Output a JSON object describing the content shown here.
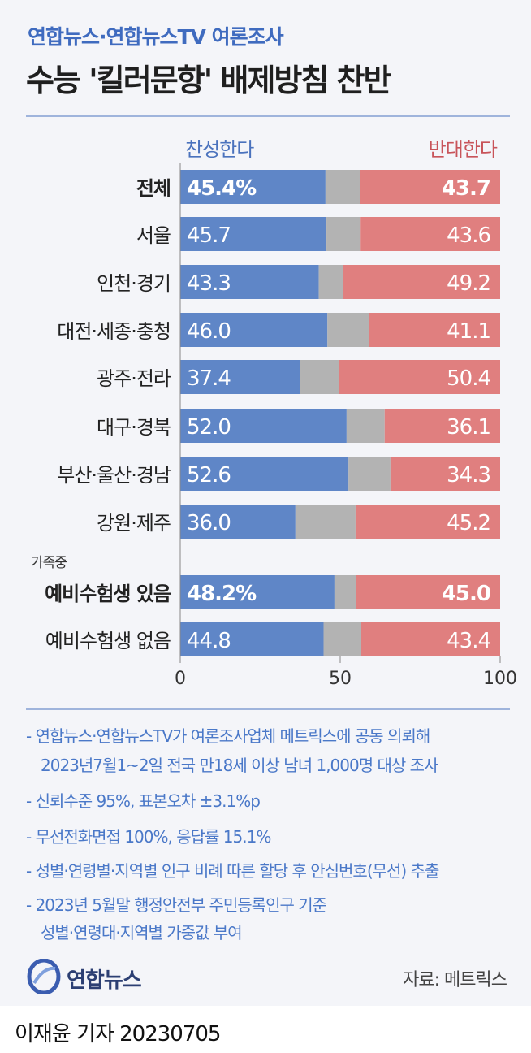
{
  "header": {
    "supertitle": "연합뉴스·연합뉴스TV 여론조사",
    "title": "수능 '킬러문항' 배제방침 찬반"
  },
  "legend": {
    "agree": "찬성한다",
    "disagree": "반대한다"
  },
  "colors": {
    "agree": "#5f86c7",
    "neutral": "#b3b3b3",
    "disagree": "#e07f7f"
  },
  "chart_data": {
    "type": "bar",
    "orientation": "horizontal-stacked",
    "categories": [
      "전체",
      "서울",
      "인천·경기",
      "대전·세종·충청",
      "광주·전라",
      "대구·경북",
      "부산·울산·경남",
      "강원·제주",
      "예비수험생 있음",
      "예비수험생 없음"
    ],
    "group_label": "가족중",
    "series": [
      {
        "name": "찬성한다",
        "values": [
          45.4,
          45.7,
          43.3,
          46.0,
          37.4,
          52.0,
          52.6,
          36.0,
          48.2,
          44.8
        ]
      },
      {
        "name": "반대한다",
        "values": [
          43.7,
          43.6,
          49.2,
          41.1,
          50.4,
          36.1,
          34.3,
          45.2,
          45.0,
          43.4
        ]
      }
    ],
    "agree_labels": [
      "45.4%",
      "45.7",
      "43.3",
      "46.0",
      "37.4",
      "52.0",
      "52.6",
      "36.0",
      "48.2%",
      "44.8"
    ],
    "disagree_labels": [
      "43.7",
      "43.6",
      "49.2",
      "41.1",
      "50.4",
      "36.1",
      "34.3",
      "45.2",
      "45.0",
      "43.4"
    ],
    "bold_rows": [
      0,
      8
    ],
    "xticks": [
      "0",
      "50",
      "100"
    ],
    "xlim": [
      0,
      100
    ]
  },
  "notes": [
    "- 연합뉴스·연합뉴스TV가 여론조사업체 메트릭스에 공동 의뢰해",
    "  2023년7월1~2일 전국 만18세 이상 남녀 1,000명 대상 조사",
    "- 신뢰수준 95%, 표본오차 ±3.1%p",
    "- 무선전화면접 100%, 응답률 15.1%",
    "- 성별·연령별·지역별 인구 비례 따른 할당 후 안심번호(무선) 추출",
    "- 2023년 5월말 행정안전부 주민등록인구 기준",
    "  성별·연령대·지역별 가중값 부여"
  ],
  "footer": {
    "logo_text": "연합뉴스",
    "source": "자료: 메트릭스",
    "byline": "이재윤 기자  20230705"
  }
}
